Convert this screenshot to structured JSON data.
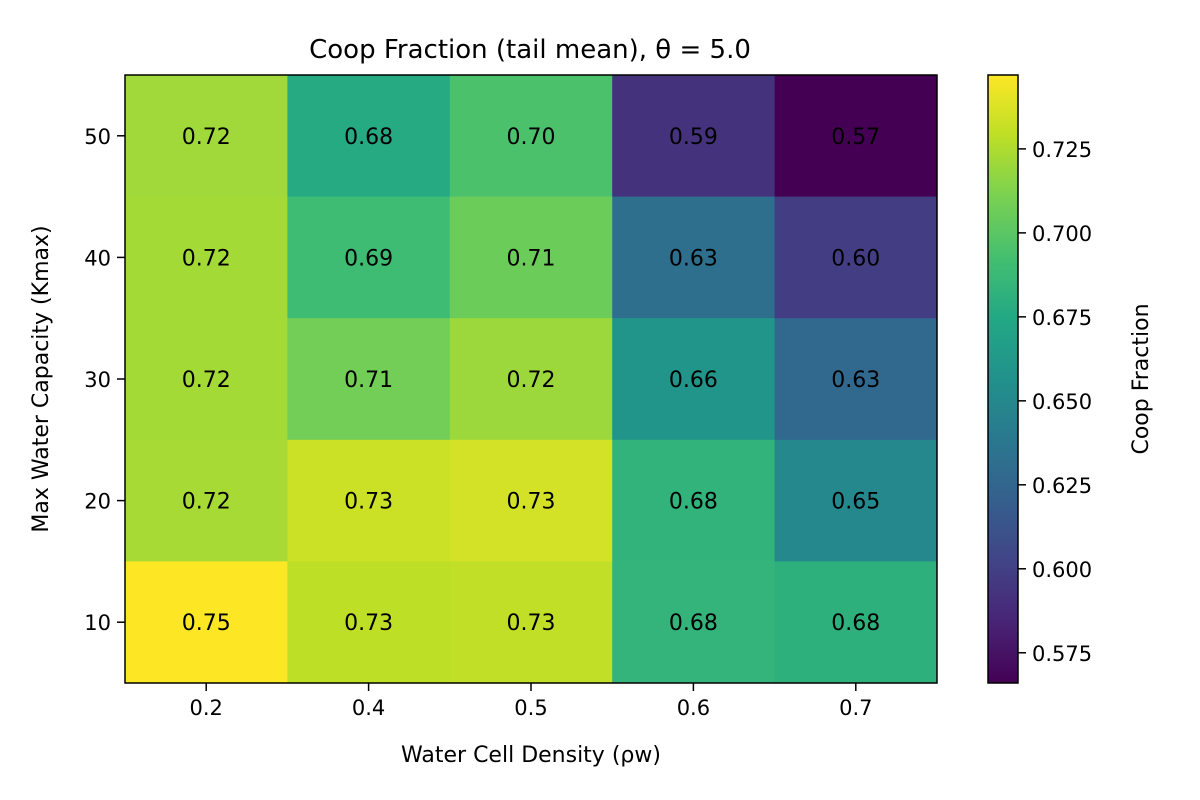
{
  "chart_data": {
    "type": "heatmap",
    "title": "Coop Fraction (tail mean), θ = 5.0",
    "xlabel": "Water Cell Density (ρw)",
    "ylabel": "Max Water Capacity (Kmax)",
    "x_categories": [
      "0.2",
      "0.4",
      "0.5",
      "0.6",
      "0.7"
    ],
    "y_categories": [
      "50",
      "40",
      "30",
      "20",
      "10"
    ],
    "values": [
      [
        0.721,
        0.676,
        0.695,
        0.592,
        0.566
      ],
      [
        0.722,
        0.69,
        0.706,
        0.632,
        0.598
      ],
      [
        0.722,
        0.708,
        0.72,
        0.66,
        0.627
      ],
      [
        0.723,
        0.733,
        0.735,
        0.683,
        0.65
      ],
      [
        0.747,
        0.729,
        0.73,
        0.684,
        0.681
      ]
    ],
    "value_labels": [
      [
        "0.72",
        "0.68",
        "0.70",
        "0.59",
        "0.57"
      ],
      [
        "0.72",
        "0.69",
        "0.71",
        "0.63",
        "0.60"
      ],
      [
        "0.72",
        "0.71",
        "0.72",
        "0.66",
        "0.63"
      ],
      [
        "0.72",
        "0.73",
        "0.73",
        "0.68",
        "0.65"
      ],
      [
        "0.75",
        "0.73",
        "0.73",
        "0.68",
        "0.68"
      ]
    ],
    "colormap": "viridis",
    "colorbar": {
      "label": "Coop Fraction",
      "range": [
        0.566,
        0.747
      ],
      "ticks": [
        0.575,
        0.6,
        0.625,
        0.65,
        0.675,
        0.7,
        0.725
      ],
      "tick_labels": [
        "0.575",
        "0.600",
        "0.625",
        "0.650",
        "0.675",
        "0.700",
        "0.725"
      ]
    },
    "grid": false
  }
}
